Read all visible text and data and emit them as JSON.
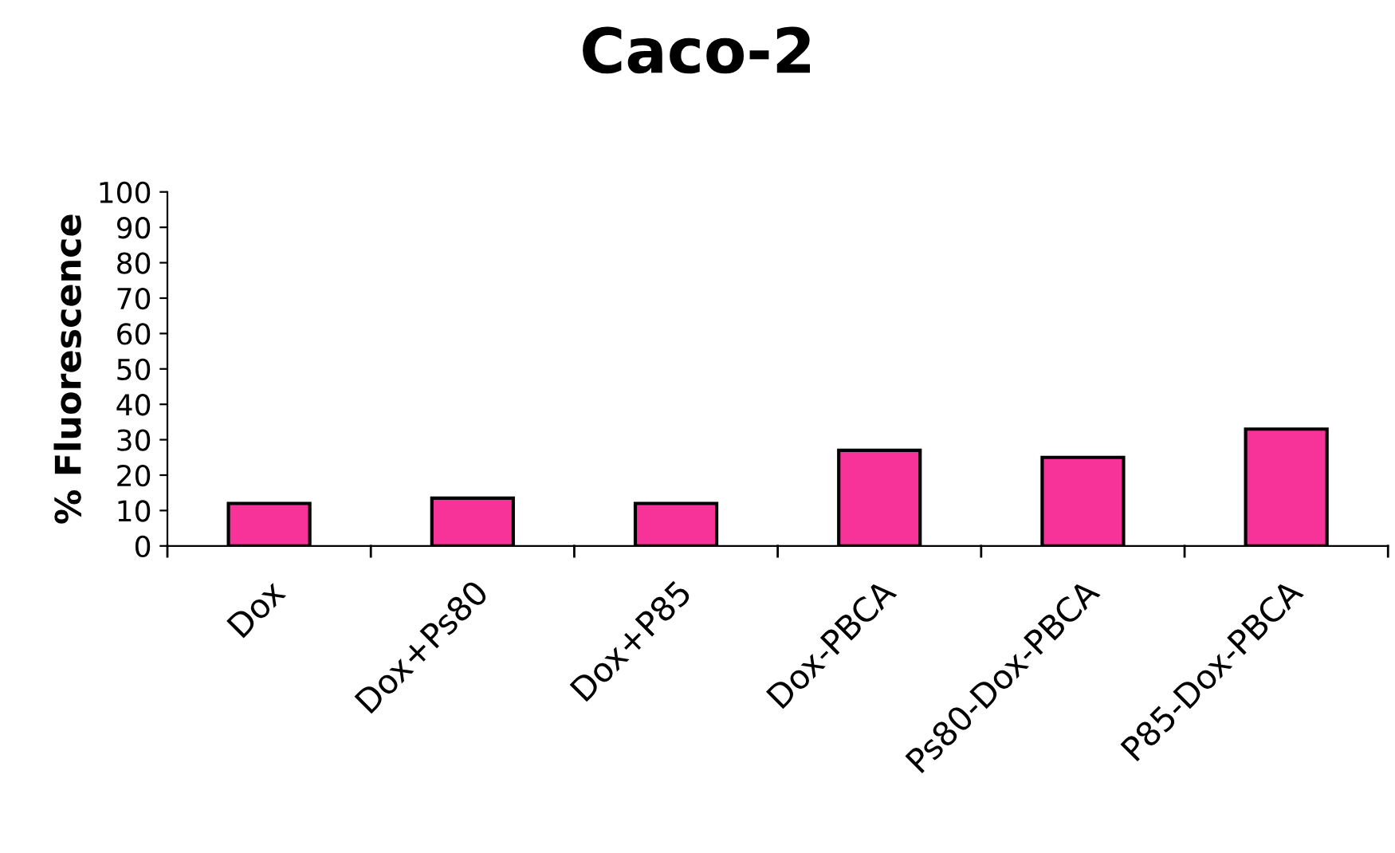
{
  "chart_data": {
    "type": "bar",
    "title": "Caco-2",
    "ylabel": "% Fluorescence",
    "categories": [
      "Dox",
      "Dox+Ps80",
      "Dox+P85",
      "Dox-PBCA",
      "Ps80-Dox-PBCA",
      "P85-Dox-PBCA"
    ],
    "values": [
      12,
      13.5,
      12,
      27,
      25,
      33
    ],
    "color": "#f7339a",
    "ylim": [
      0,
      100
    ],
    "yticks": [
      0,
      10,
      20,
      30,
      40,
      50,
      60,
      70,
      80,
      90,
      100
    ],
    "grid": false,
    "legend": false
  }
}
